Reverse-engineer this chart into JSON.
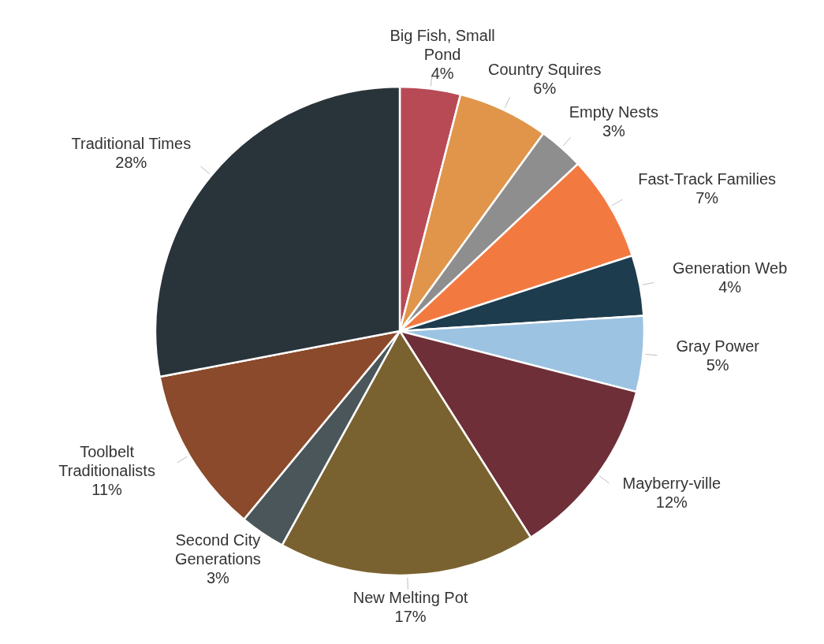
{
  "chart_data": {
    "type": "pie",
    "categories": [
      "Big Fish, Small Pond",
      "Country Squires",
      "Empty Nests",
      "Fast-Track Families",
      "Generation Web",
      "Gray Power",
      "Mayberry-ville",
      "New Melting Pot",
      "Second City Generations",
      "Toolbelt Traditionalists",
      "Traditional Times"
    ],
    "values": [
      4,
      6,
      3,
      7,
      4,
      5,
      12,
      17,
      3,
      11,
      28
    ],
    "colors": [
      "#b84a56",
      "#e0954a",
      "#8e8e8e",
      "#f27a40",
      "#1d3c4e",
      "#9cc3e2",
      "#6e2f38",
      "#7a6230",
      "#4a5659",
      "#8a4a2b",
      "#29333a"
    ],
    "value_labels": [
      "4%",
      "6%",
      "3%",
      "7%",
      "4%",
      "5%",
      "12%",
      "17%",
      "3%",
      "11%",
      "28%"
    ]
  }
}
